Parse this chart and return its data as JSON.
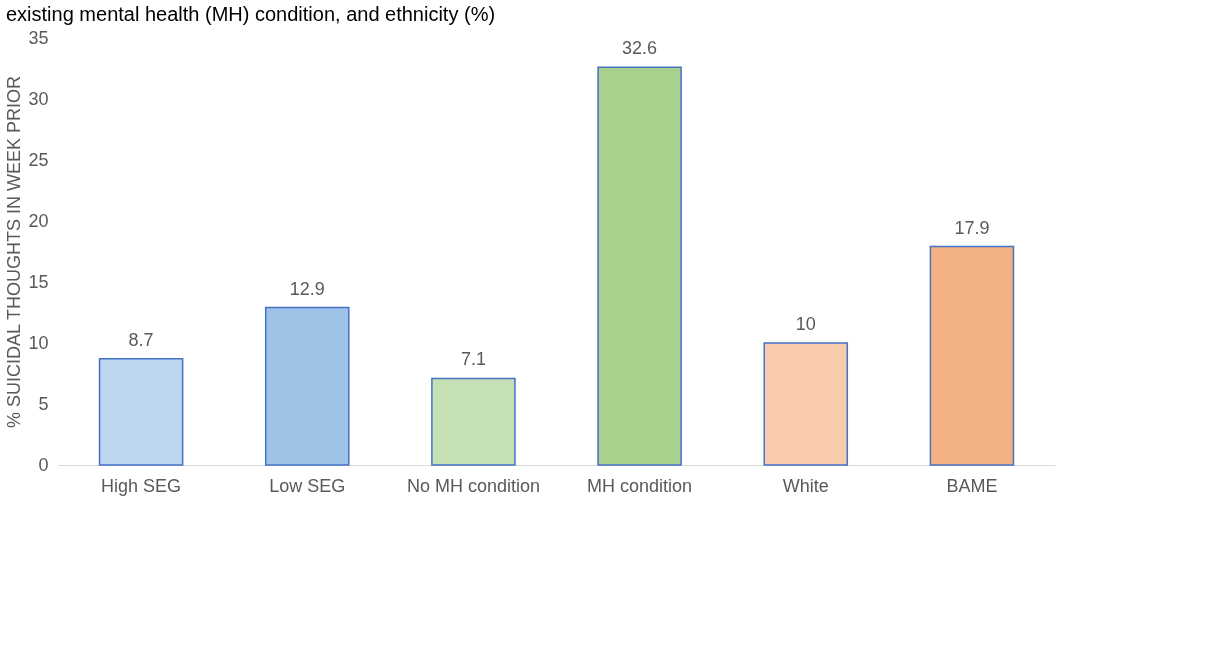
{
  "chart_data": {
    "type": "bar",
    "title": "existing mental health (MH) condition, and ethnicity (%)",
    "ylabel": "% SUICIDAL THOUGHTS IN WEEK PRIOR",
    "categories": [
      "High SEG",
      "Low SEG",
      "No MH condition",
      "MH condition",
      "White",
      "BAME"
    ],
    "values": [
      8.7,
      12.9,
      7.1,
      32.6,
      10,
      17.9
    ],
    "colors": [
      "#bdd7ee",
      "#9dc3e6",
      "#c5e0b4",
      "#a9d18e",
      "#f8cbad",
      "#f4b183"
    ],
    "ylim": [
      0,
      35
    ],
    "yticks": [
      0,
      5,
      10,
      15,
      20,
      25,
      30,
      35
    ],
    "grid": false,
    "data_labels": true
  }
}
